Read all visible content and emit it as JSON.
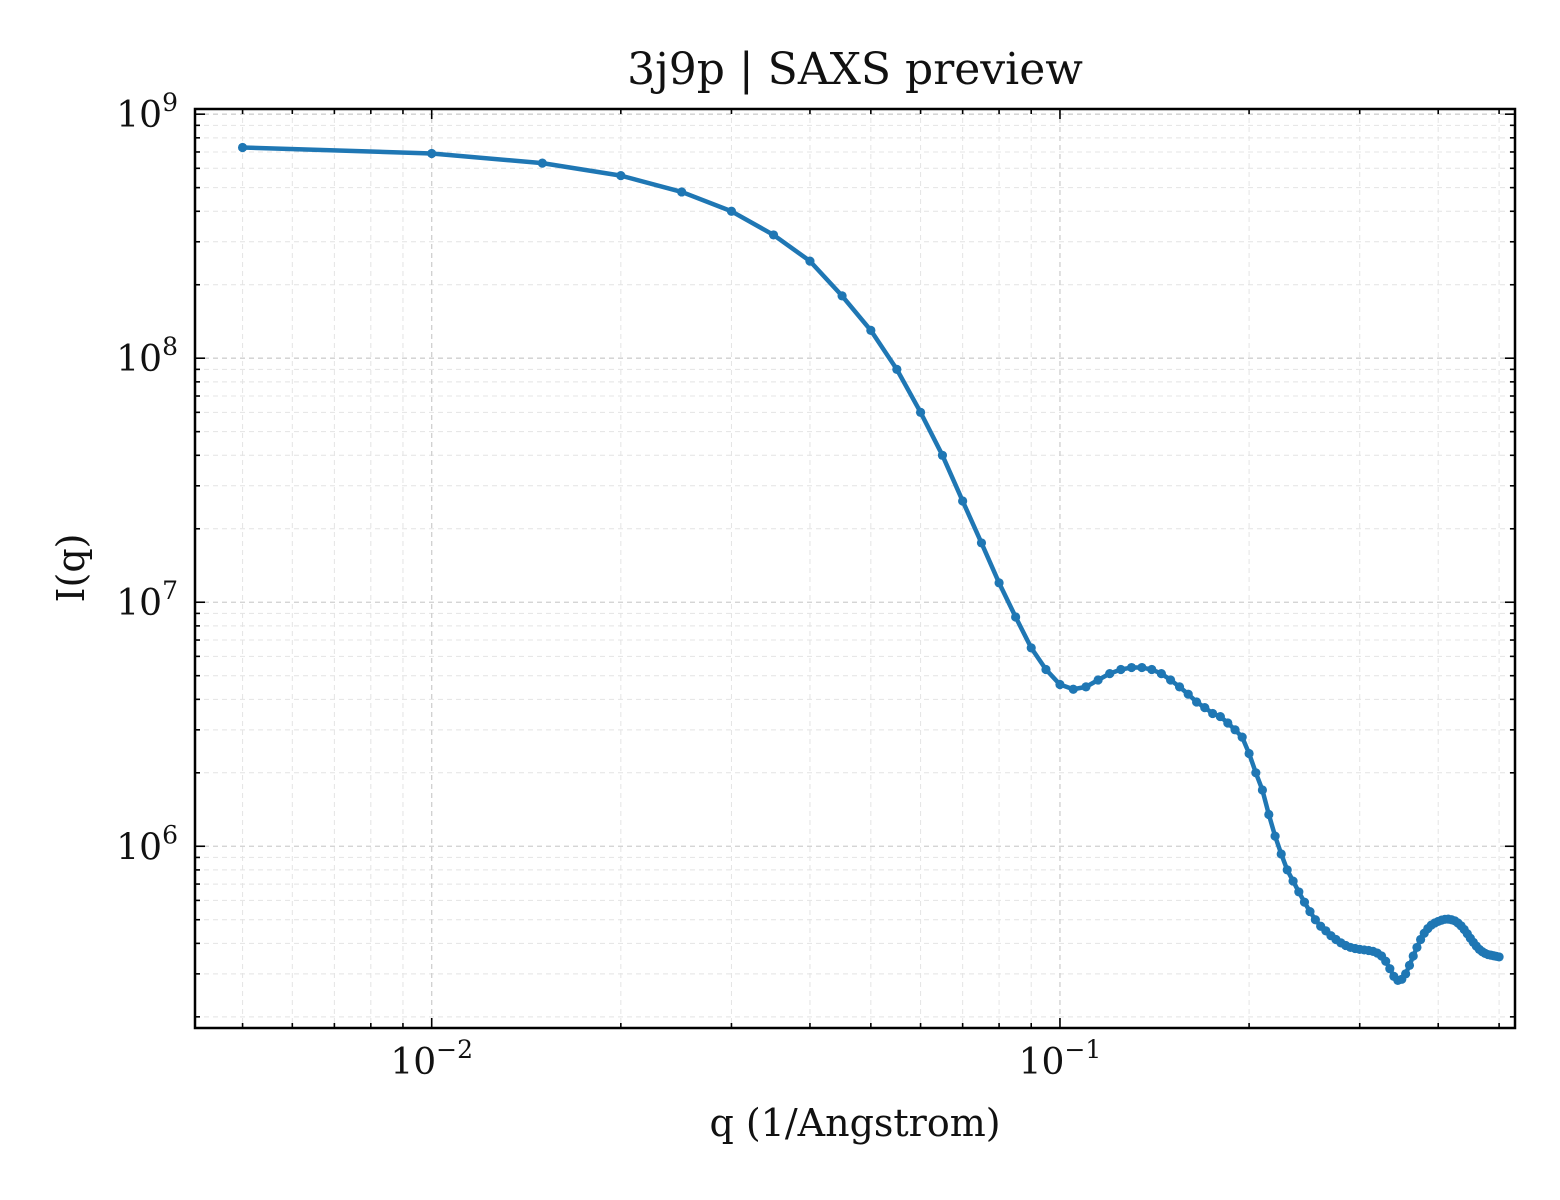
{
  "chart_data": {
    "type": "line",
    "title": "3j9p | SAXS preview",
    "xlabel": "q (1/Angstrom)",
    "ylabel": "I(q)",
    "x_scale": "log",
    "y_scale": "log",
    "xlim": [
      0.0042,
      0.53
    ],
    "ylim": [
      180000,
      1050000000
    ],
    "grid": true,
    "grid_minor": true,
    "line_color": "#1f77b4",
    "marker": "dot",
    "x_ticks": [
      {
        "value": 0.01,
        "base": "10",
        "exp": "−2"
      },
      {
        "value": 0.1,
        "base": "10",
        "exp": "−1"
      }
    ],
    "y_ticks": [
      {
        "value": 1000000,
        "base": "10",
        "exp": "6"
      },
      {
        "value": 10000000,
        "base": "10",
        "exp": "7"
      },
      {
        "value": 100000000,
        "base": "10",
        "exp": "8"
      },
      {
        "value": 1000000000,
        "base": "10",
        "exp": "9"
      }
    ],
    "series": [
      {
        "x": [
          0.005,
          0.01,
          0.015,
          0.02,
          0.025,
          0.03,
          0.035,
          0.04,
          0.045,
          0.05,
          0.055,
          0.06,
          0.065,
          0.07,
          0.075,
          0.08,
          0.085,
          0.09,
          0.095,
          0.1,
          0.105,
          0.11,
          0.115,
          0.12,
          0.125,
          0.13,
          0.135,
          0.14,
          0.145,
          0.15,
          0.155,
          0.16,
          0.165,
          0.17,
          0.175,
          0.18,
          0.185,
          0.19,
          0.195,
          0.2,
          0.205,
          0.21,
          0.215,
          0.22,
          0.225,
          0.23,
          0.235,
          0.24,
          0.245,
          0.25,
          0.255,
          0.26,
          0.265,
          0.27,
          0.275,
          0.28,
          0.285,
          0.29,
          0.295,
          0.3,
          0.305,
          0.31,
          0.315,
          0.32,
          0.325,
          0.33,
          0.335,
          0.34,
          0.345,
          0.35,
          0.355,
          0.36,
          0.365,
          0.37,
          0.375,
          0.38,
          0.385,
          0.39,
          0.395,
          0.4,
          0.405,
          0.41,
          0.415,
          0.42,
          0.425,
          0.43,
          0.435,
          0.44,
          0.445,
          0.45,
          0.455,
          0.46,
          0.465,
          0.47,
          0.475,
          0.48,
          0.485,
          0.49,
          0.495,
          0.5
        ],
        "y": [
          730000000,
          690000000,
          630000000,
          560000000,
          480000000,
          400000000,
          320000000,
          250000000,
          180000000,
          130000000,
          90000000,
          60000000,
          40000000,
          26000000,
          17500000,
          12000000,
          8700000,
          6500000,
          5300000,
          4600000,
          4400000,
          4500000,
          4800000,
          5100000,
          5300000,
          5400000,
          5400000,
          5300000,
          5100000,
          4800000,
          4500000,
          4200000,
          3900000,
          3700000,
          3500000,
          3400000,
          3200000,
          3000000,
          2800000,
          2400000,
          2000000,
          1700000,
          1350000,
          1100000,
          930000,
          800000,
          720000,
          650000,
          590000,
          540000,
          500000,
          470000,
          450000,
          430000,
          415000,
          402000,
          392000,
          385000,
          381000,
          378000,
          376000,
          374000,
          371000,
          365000,
          355000,
          338000,
          315000,
          293000,
          282000,
          285000,
          300000,
          325000,
          355000,
          385000,
          415000,
          440000,
          460000,
          475000,
          485000,
          492000,
          498000,
          502000,
          503000,
          500000,
          495000,
          485000,
          472000,
          456000,
          438000,
          420000,
          404000,
          390000,
          378000,
          370000,
          364000,
          360000,
          358000,
          356000,
          354000,
          352000
        ]
      }
    ]
  }
}
